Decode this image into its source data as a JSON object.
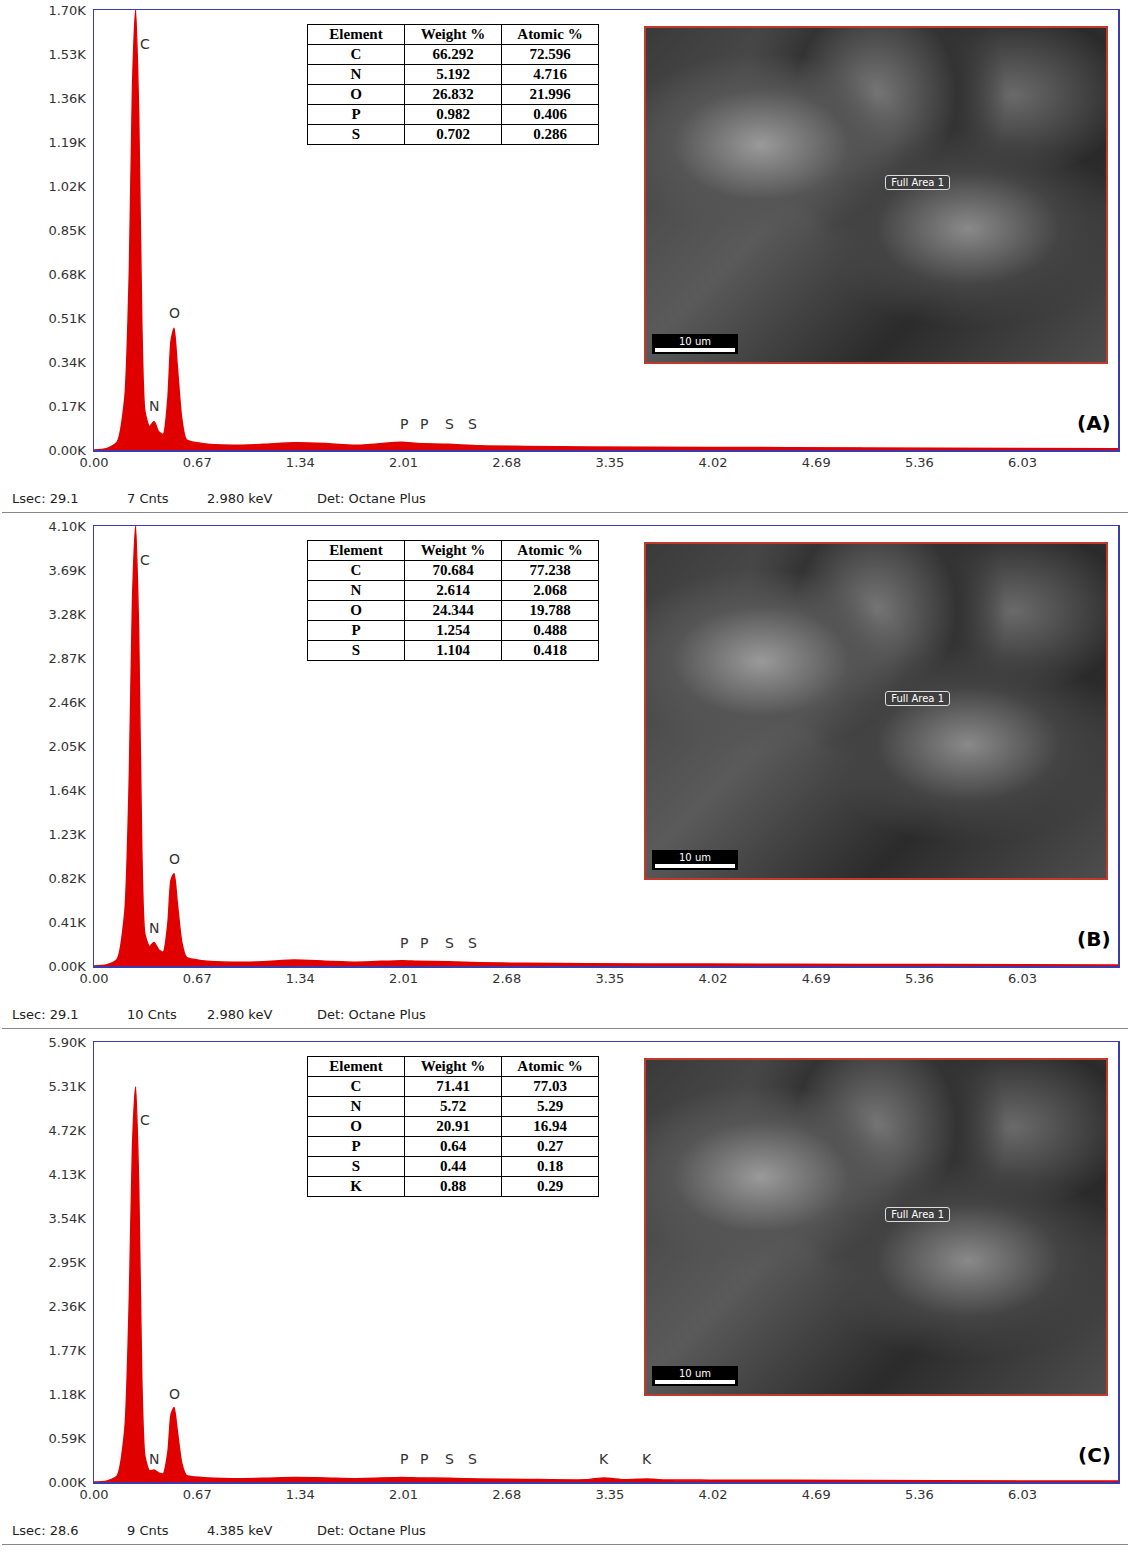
{
  "chart_data": [
    {
      "type": "area",
      "panel": "(A)",
      "color": "#e00000",
      "x": [
        0,
        0.08,
        0.15,
        0.2,
        0.23,
        0.25,
        0.27,
        0.29,
        0.31,
        0.33,
        0.36,
        0.39,
        0.42,
        0.45,
        0.48,
        0.5,
        0.52,
        0.54,
        0.57,
        0.6,
        0.7,
        0.9,
        1.1,
        1.3,
        1.5,
        1.7,
        2.0,
        2.1,
        2.3,
        2.5,
        2.8,
        3.2,
        4.0,
        5.0,
        6.0,
        6.65
      ],
      "values": [
        0,
        5,
        30,
        200,
        700,
        1400,
        1700,
        1300,
        500,
        150,
        90,
        110,
        70,
        60,
        200,
        420,
        470,
        330,
        120,
        40,
        25,
        18,
        22,
        28,
        25,
        18,
        30,
        25,
        22,
        16,
        14,
        12,
        10,
        8,
        6,
        5
      ],
      "xlim": [
        0,
        6.65
      ],
      "xticks": [
        {
          "value": 0,
          "label": "0.00"
        },
        0.67,
        1.34,
        2.01,
        2.68,
        3.35,
        4.02,
        4.69,
        5.36,
        6.03
      ],
      "ylim": [
        0,
        1700
      ],
      "yticks": [
        {
          "value": 0,
          "label": "0.00K"
        },
        {
          "value": 170,
          "label": "0.17K"
        },
        {
          "value": 340,
          "label": "0.34K"
        },
        {
          "value": 510,
          "label": "0.51K"
        },
        {
          "value": 680,
          "label": "0.68K"
        },
        {
          "value": 850,
          "label": "0.85K"
        },
        {
          "value": 1020,
          "label": "1.02K"
        },
        {
          "value": 1190,
          "label": "1.19K"
        },
        {
          "value": 1360,
          "label": "1.36K"
        },
        {
          "value": 1530,
          "label": "1.53K"
        },
        {
          "value": 1700,
          "label": "1.70K"
        }
      ],
      "annotations": [
        {
          "text": "C",
          "x": 0.33,
          "y": 1530
        },
        {
          "text": "N",
          "x": 0.39,
          "y": 130
        },
        {
          "text": "O",
          "x": 0.52,
          "y": 490
        },
        {
          "text": "P",
          "x": 2.01,
          "y": 60
        },
        {
          "text": "P",
          "x": 2.14,
          "y": 60
        },
        {
          "text": "S",
          "x": 2.31,
          "y": 60
        },
        {
          "text": "S",
          "x": 2.46,
          "y": 60
        }
      ],
      "footer": [
        "Lsec: 29.1",
        "7 Cnts",
        "2.980 keV",
        "Det: Octane Plus"
      ],
      "table": {
        "columns": [
          "Element",
          "Weight %",
          "Atomic %"
        ],
        "rows": [
          [
            "C",
            "66.292",
            "72.596"
          ],
          [
            "N",
            "5.192",
            "4.716"
          ],
          [
            "O",
            "26.832",
            "21.996"
          ],
          [
            "P",
            "0.982",
            "0.406"
          ],
          [
            "S",
            "0.702",
            "0.286"
          ]
        ]
      },
      "image": {
        "label": "Full Area 1",
        "scale_bar": "10 um"
      }
    },
    {
      "type": "area",
      "panel": "(B)",
      "color": "#e00000",
      "x": [
        0,
        0.08,
        0.15,
        0.2,
        0.23,
        0.25,
        0.27,
        0.29,
        0.31,
        0.33,
        0.36,
        0.39,
        0.42,
        0.45,
        0.48,
        0.5,
        0.52,
        0.54,
        0.57,
        0.6,
        0.7,
        0.9,
        1.1,
        1.3,
        1.5,
        1.7,
        2.0,
        2.1,
        2.3,
        2.5,
        2.8,
        3.2,
        4.0,
        5.0,
        6.0,
        6.65
      ],
      "values": [
        0,
        10,
        60,
        500,
        1800,
        3400,
        4100,
        3100,
        1100,
        300,
        180,
        220,
        150,
        130,
        400,
        800,
        860,
        600,
        220,
        80,
        50,
        35,
        40,
        55,
        45,
        35,
        50,
        45,
        40,
        30,
        25,
        22,
        18,
        15,
        12,
        10
      ],
      "xlim": [
        0,
        6.65
      ],
      "xticks": [
        {
          "value": 0,
          "label": "0.00"
        },
        0.67,
        1.34,
        2.01,
        2.68,
        3.35,
        4.02,
        4.69,
        5.36,
        6.03
      ],
      "ylim": [
        0,
        4100
      ],
      "yticks": [
        {
          "value": 0,
          "label": "0.00K"
        },
        {
          "value": 410,
          "label": "0.41K"
        },
        {
          "value": 820,
          "label": "0.82K"
        },
        {
          "value": 1230,
          "label": "1.23K"
        },
        {
          "value": 1640,
          "label": "1.64K"
        },
        {
          "value": 2050,
          "label": "2.05K"
        },
        {
          "value": 2460,
          "label": "2.46K"
        },
        {
          "value": 2870,
          "label": "2.87K"
        },
        {
          "value": 3280,
          "label": "3.28K"
        },
        {
          "value": 3690,
          "label": "3.69K"
        },
        {
          "value": 4100,
          "label": "4.10K"
        }
      ],
      "annotations": [
        {
          "text": "C",
          "x": 0.33,
          "y": 3690
        },
        {
          "text": "N",
          "x": 0.39,
          "y": 260
        },
        {
          "text": "O",
          "x": 0.52,
          "y": 900
        },
        {
          "text": "P",
          "x": 2.01,
          "y": 120
        },
        {
          "text": "P",
          "x": 2.14,
          "y": 120
        },
        {
          "text": "S",
          "x": 2.31,
          "y": 120
        },
        {
          "text": "S",
          "x": 2.46,
          "y": 120
        }
      ],
      "footer": [
        "Lsec: 29.1",
        "10 Cnts",
        "2.980 keV",
        "Det: Octane Plus"
      ],
      "table": {
        "columns": [
          "Element",
          "Weight %",
          "Atomic %"
        ],
        "rows": [
          [
            "C",
            "70.684",
            "77.238"
          ],
          [
            "N",
            "2.614",
            "2.068"
          ],
          [
            "O",
            "24.344",
            "19.788"
          ],
          [
            "P",
            "1.254",
            "0.488"
          ],
          [
            "S",
            "1.104",
            "0.418"
          ]
        ]
      },
      "image": {
        "label": "Full Area 1",
        "scale_bar": "10 um"
      }
    },
    {
      "type": "area",
      "panel": "(C)",
      "color": "#e00000",
      "x": [
        0,
        0.08,
        0.15,
        0.2,
        0.23,
        0.25,
        0.27,
        0.29,
        0.31,
        0.33,
        0.36,
        0.39,
        0.42,
        0.45,
        0.48,
        0.5,
        0.52,
        0.54,
        0.57,
        0.6,
        0.7,
        0.9,
        1.1,
        1.3,
        1.5,
        1.7,
        2.0,
        2.1,
        2.3,
        2.5,
        2.8,
        3.2,
        3.31,
        3.45,
        3.59,
        3.7,
        4.0,
        5.0,
        6.0,
        6.65
      ],
      "values": [
        0,
        12,
        80,
        700,
        2500,
        4500,
        5300,
        4000,
        1400,
        350,
        150,
        160,
        120,
        110,
        400,
        900,
        1000,
        700,
        250,
        90,
        60,
        45,
        50,
        60,
        55,
        45,
        60,
        55,
        50,
        40,
        35,
        30,
        55,
        30,
        40,
        28,
        25,
        20,
        15,
        12
      ],
      "xlim": [
        0,
        6.65
      ],
      "xticks": [
        {
          "value": 0,
          "label": "0.00"
        },
        0.67,
        1.34,
        2.01,
        2.68,
        3.35,
        4.02,
        4.69,
        5.36,
        6.03
      ],
      "ylim": [
        0,
        5900
      ],
      "yticks": [
        {
          "value": 0,
          "label": "0.00K"
        },
        {
          "value": 590,
          "label": "0.59K"
        },
        {
          "value": 1180,
          "label": "1.18K"
        },
        {
          "value": 1770,
          "label": "1.77K"
        },
        {
          "value": 2360,
          "label": "2.36K"
        },
        {
          "value": 2950,
          "label": "2.95K"
        },
        {
          "value": 3540,
          "label": "3.54K"
        },
        {
          "value": 4130,
          "label": "4.13K"
        },
        {
          "value": 4720,
          "label": "4.72K"
        },
        {
          "value": 5310,
          "label": "5.31K"
        },
        {
          "value": 5900,
          "label": "5.90K"
        }
      ],
      "annotations": [
        {
          "text": "C",
          "x": 0.33,
          "y": 4720
        },
        {
          "text": "N",
          "x": 0.39,
          "y": 170
        },
        {
          "text": "O",
          "x": 0.52,
          "y": 1050
        },
        {
          "text": "P",
          "x": 2.01,
          "y": 170
        },
        {
          "text": "P",
          "x": 2.14,
          "y": 170
        },
        {
          "text": "S",
          "x": 2.31,
          "y": 170
        },
        {
          "text": "S",
          "x": 2.46,
          "y": 170
        },
        {
          "text": "K",
          "x": 3.31,
          "y": 170
        },
        {
          "text": "K",
          "x": 3.59,
          "y": 170
        }
      ],
      "footer": [
        "Lsec: 28.6",
        "9 Cnts",
        "4.385 keV",
        "Det: Octane Plus"
      ],
      "table": {
        "columns": [
          "Element",
          "Weight %",
          "Atomic %"
        ],
        "rows": [
          [
            "C",
            "71.41",
            "77.03"
          ],
          [
            "N",
            "5.72",
            "5.29"
          ],
          [
            "O",
            "20.91",
            "16.94"
          ],
          [
            "P",
            "0.64",
            "0.27"
          ],
          [
            "S",
            "0.44",
            "0.18"
          ],
          [
            "K",
            "0.88",
            "0.29"
          ]
        ]
      },
      "image": {
        "label": "Full Area 1",
        "scale_bar": "10 um"
      }
    }
  ]
}
